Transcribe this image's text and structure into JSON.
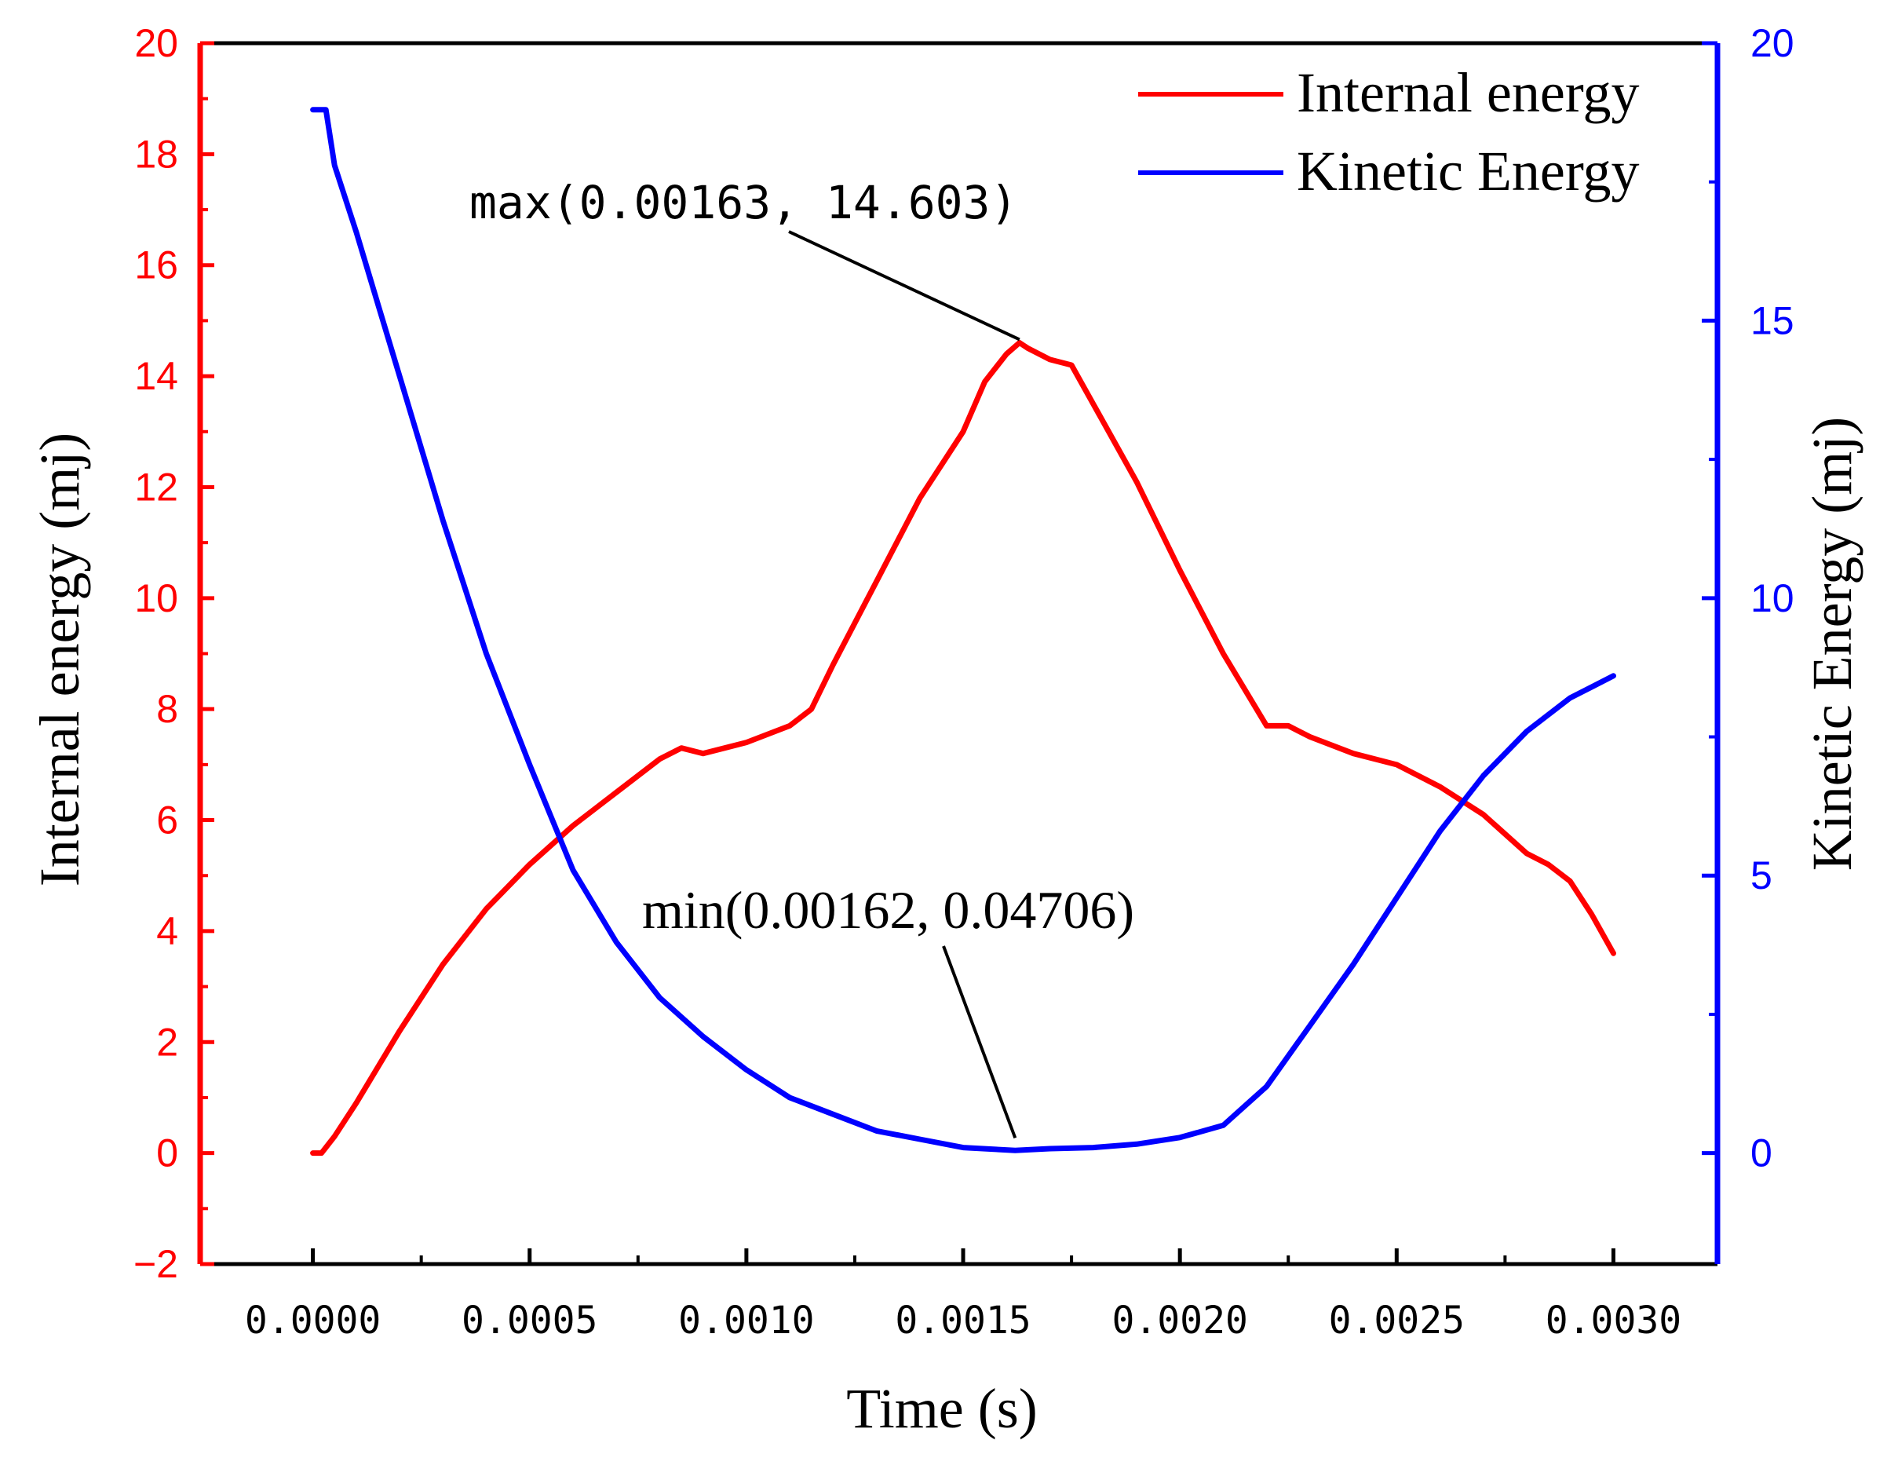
{
  "chart_data": {
    "type": "line",
    "xlabel": "Time (s)",
    "y_left_label": "Internal energy (mj)",
    "y_right_label": "Kinetic Energy (mj)",
    "x_ticks": [
      "0.0000",
      "0.0005",
      "0.0010",
      "0.0015",
      "0.0020",
      "0.0025",
      "0.0030"
    ],
    "x_tick_values": [
      0,
      0.0005,
      0.001,
      0.0015,
      0.002,
      0.0025,
      0.003
    ],
    "xlim": [
      -0.00026,
      0.00324
    ],
    "y_left_ticks": [
      "−2",
      "0",
      "2",
      "4",
      "6",
      "8",
      "10",
      "12",
      "14",
      "16",
      "18",
      "20"
    ],
    "y_left_tick_values": [
      -2,
      0,
      2,
      4,
      6,
      8,
      10,
      12,
      14,
      16,
      18,
      20
    ],
    "y_left_lim": [
      -2,
      20
    ],
    "y_right_ticks": [
      "0",
      "5",
      "10",
      "15",
      "20"
    ],
    "y_right_tick_values": [
      0,
      5,
      10,
      15,
      20
    ],
    "y_right_lim": [
      -2,
      20
    ],
    "legend_position": "top-right",
    "colors": {
      "internal": "#ff0000",
      "kinetic": "#0000ff",
      "axis": "#000000"
    },
    "series": [
      {
        "name": "Internal energy",
        "axis": "left",
        "x": [
          0,
          2e-05,
          5e-05,
          0.0001,
          0.0002,
          0.0003,
          0.0004,
          0.0005,
          0.0006,
          0.0007,
          0.0008,
          0.00085,
          0.0009,
          0.00095,
          0.001,
          0.0011,
          0.00115,
          0.0012,
          0.0013,
          0.0014,
          0.0015,
          0.00155,
          0.0016,
          0.00163,
          0.00165,
          0.0017,
          0.00175,
          0.0018,
          0.0019,
          0.002,
          0.0021,
          0.0022,
          0.00225,
          0.0023,
          0.0024,
          0.0025,
          0.0026,
          0.0027,
          0.0028,
          0.00285,
          0.0029,
          0.00295,
          0.003
        ],
        "values": [
          0,
          0,
          0.3,
          0.9,
          2.2,
          3.4,
          4.4,
          5.2,
          5.9,
          6.5,
          7.1,
          7.3,
          7.2,
          7.3,
          7.4,
          7.7,
          8.0,
          8.8,
          10.3,
          11.8,
          13.0,
          13.9,
          14.4,
          14.603,
          14.5,
          14.3,
          14.2,
          13.5,
          12.1,
          10.5,
          9.0,
          7.7,
          7.7,
          7.5,
          7.2,
          7.0,
          6.6,
          6.1,
          5.4,
          5.2,
          4.9,
          4.3,
          3.6
        ]
      },
      {
        "name": "Kinetic Energy",
        "axis": "right",
        "x": [
          0,
          3e-05,
          5e-05,
          0.0001,
          0.00015,
          0.0002,
          0.0003,
          0.0004,
          0.0005,
          0.0006,
          0.0007,
          0.0008,
          0.0009,
          0.001,
          0.0011,
          0.0012,
          0.0013,
          0.0014,
          0.0015,
          0.00162,
          0.0017,
          0.0018,
          0.0019,
          0.002,
          0.0021,
          0.0022,
          0.0023,
          0.0024,
          0.0025,
          0.0026,
          0.0027,
          0.0028,
          0.0029,
          0.003
        ],
        "values": [
          18.8,
          18.8,
          17.8,
          16.6,
          15.3,
          14.0,
          11.4,
          9.0,
          7.0,
          5.1,
          3.8,
          2.8,
          2.1,
          1.5,
          1.0,
          0.7,
          0.4,
          0.25,
          0.1,
          0.04706,
          0.08,
          0.1,
          0.16,
          0.28,
          0.5,
          1.2,
          2.3,
          3.4,
          4.6,
          5.8,
          6.8,
          7.6,
          8.2,
          8.6
        ]
      }
    ],
    "annotations": [
      {
        "name": "max",
        "text": "max(0.00163,  14.603)",
        "x": 0.00163,
        "y": 14.603,
        "axis": "left"
      },
      {
        "name": "min",
        "text": "min(0.00162, 0.04706)",
        "x": 0.00162,
        "y": 0.04706,
        "axis": "right"
      }
    ]
  }
}
